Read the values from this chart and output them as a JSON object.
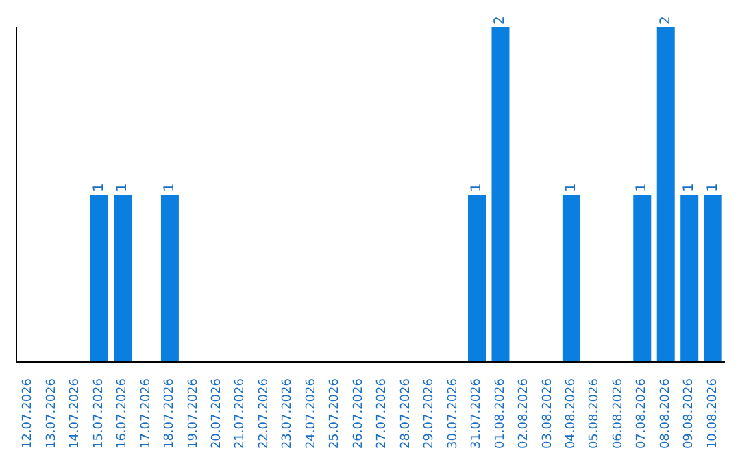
{
  "chart_data": {
    "type": "bar",
    "categories": [
      "12.07.2026",
      "13.07.2026",
      "14.07.2026",
      "15.07.2026",
      "16.07.2026",
      "17.07.2026",
      "18.07.2026",
      "19.07.2026",
      "20.07.2026",
      "21.07.2026",
      "22.07.2026",
      "23.07.2026",
      "24.07.2026",
      "25.07.2026",
      "26.07.2026",
      "27.07.2026",
      "28.07.2026",
      "29.07.2026",
      "30.07.2026",
      "31.07.2026",
      "01.08.2026",
      "02.08.2026",
      "03.08.2026",
      "04.08.2026",
      "05.08.2026",
      "06.08.2026",
      "07.08.2026",
      "08.08.2026",
      "09.08.2026",
      "10.08.2026"
    ],
    "values": [
      0,
      0,
      0,
      1,
      1,
      0,
      1,
      0,
      0,
      0,
      0,
      0,
      0,
      0,
      0,
      0,
      0,
      0,
      0,
      1,
      2,
      0,
      0,
      1,
      0,
      0,
      1,
      2,
      1,
      1
    ],
    "value_labels": [
      null,
      null,
      null,
      "1",
      "1",
      null,
      "1",
      null,
      null,
      null,
      null,
      null,
      null,
      null,
      null,
      null,
      null,
      null,
      null,
      "1",
      "2",
      null,
      null,
      "1",
      null,
      null,
      "1",
      "2",
      "1",
      "1"
    ],
    "color": "#0a7fe0"
  }
}
